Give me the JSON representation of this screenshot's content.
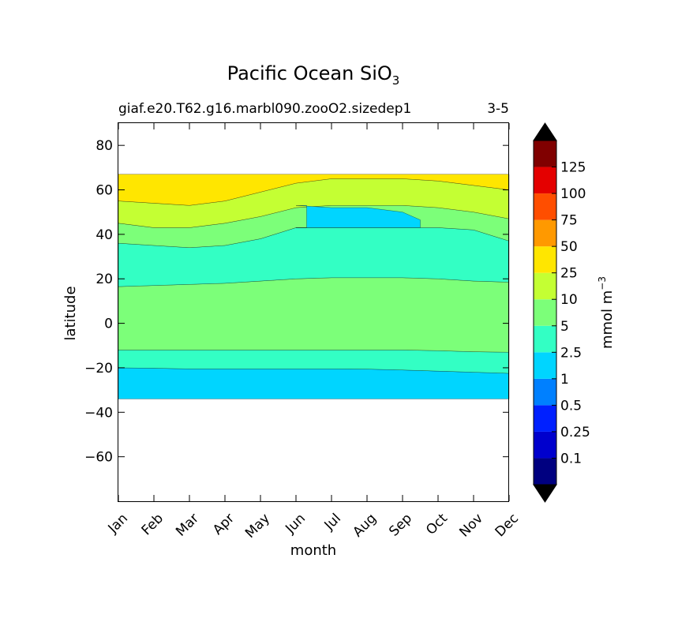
{
  "chart_data": {
    "type": "contourf",
    "title": "Pacific Ocean SiO",
    "title_subscript": "3",
    "subtitle_left": "giaf.e20.T62.g16.marbl090.zooO2.sizedep1",
    "subtitle_right": "3-5",
    "xlabel": "month",
    "ylabel": "latitude",
    "x_ticks": [
      "Jan",
      "Feb",
      "Mar",
      "Apr",
      "May",
      "Jun",
      "Jul",
      "Aug",
      "Sep",
      "Oct",
      "Nov",
      "Dec"
    ],
    "x_range": [
      0,
      11
    ],
    "y_range": [
      -80,
      90
    ],
    "y_ticks": [
      80,
      60,
      40,
      20,
      0,
      -20,
      -40,
      -60
    ],
    "y_tick_labels": [
      "80",
      "60",
      "40",
      "20",
      "0",
      "−20",
      "−40",
      "−60"
    ],
    "data_lat_range": [
      -34,
      67
    ],
    "colorbar": {
      "label": "mmol m",
      "label_superscript": "−3",
      "levels": [
        "0.1",
        "0.25",
        "0.5",
        "1",
        "2.5",
        "5",
        "10",
        "25",
        "50",
        "75",
        "100",
        "125"
      ],
      "colors": [
        "#000080",
        "#0000cd",
        "#0020ff",
        "#0080ff",
        "#00d5ff",
        "#33ffc4",
        "#7cff79",
        "#c4ff33",
        "#ffe600",
        "#ff9900",
        "#ff4e00",
        "#e40000",
        "#800000"
      ],
      "extend_low_color": "#000000",
      "extend_high_color": "#000000"
    },
    "regions": [
      {
        "band": "1-2.5",
        "color": "#00d5ff",
        "lower": [
          -34,
          -34,
          -34,
          -34,
          -34,
          -34,
          -34,
          -34,
          -34,
          -34,
          -34,
          -34
        ],
        "upper": [
          -20,
          -20.2,
          -20.5,
          -20.5,
          -20.5,
          -20.5,
          -20.5,
          -20.6,
          -21,
          -21.5,
          -22,
          -22.5
        ]
      },
      {
        "band": "2.5-5",
        "color": "#33ffc4",
        "lower": [
          -20,
          -20.2,
          -20.5,
          -20.5,
          -20.5,
          -20.5,
          -20.5,
          -20.6,
          -21,
          -21.5,
          -22,
          -22.5
        ],
        "upper": [
          -12,
          -12,
          -12,
          -12,
          -12,
          -12,
          -12,
          -12,
          -12,
          -12.3,
          -12.8,
          -13
        ]
      },
      {
        "band": "5-10",
        "color": "#7cff79",
        "lower": [
          -12,
          -12,
          -12,
          -12,
          -12,
          -12,
          -12,
          -12,
          -12,
          -12.3,
          -12.8,
          -13
        ],
        "upper": [
          16.5,
          17,
          17.5,
          18,
          19,
          20,
          20.5,
          20.5,
          20.5,
          20,
          19,
          18.5
        ]
      },
      {
        "band": "2.5-5",
        "color": "#33ffc4",
        "lower": [
          16.5,
          17,
          17.5,
          18,
          19,
          20,
          20.5,
          20.5,
          20.5,
          20,
          19,
          18.5
        ],
        "upper": [
          36,
          35,
          34,
          35,
          38,
          43,
          43,
          43,
          43,
          43,
          42,
          37
        ]
      },
      {
        "band": "5-10",
        "color": "#7cff79",
        "lower": [
          36,
          35,
          34,
          35,
          38,
          43,
          43,
          43,
          43,
          43,
          42,
          37
        ],
        "upper": [
          45,
          43,
          43,
          45,
          48,
          52,
          53,
          53,
          53,
          52,
          50,
          47
        ]
      },
      {
        "band": "10-25",
        "color": "#c4ff33",
        "lower": [
          45,
          43,
          43,
          45,
          48,
          52,
          53,
          53,
          53,
          52,
          50,
          47
        ],
        "upper": [
          55,
          54,
          53,
          55,
          59,
          63,
          65,
          65,
          65,
          64,
          62,
          60
        ]
      },
      {
        "band": "25-50",
        "color": "#ffe600",
        "lower": [
          55,
          54,
          53,
          55,
          59,
          63,
          65,
          65,
          65,
          64,
          62,
          60
        ],
        "upper": [
          67,
          67,
          67,
          67,
          67,
          67,
          67,
          67,
          67,
          67,
          67,
          67
        ]
      },
      {
        "band": "1-2.5",
        "color": "#00d5ff",
        "lower": [
          null,
          null,
          null,
          null,
          null,
          43,
          43,
          43,
          43,
          null,
          null,
          null
        ],
        "upper": [
          null,
          null,
          null,
          null,
          null,
          53,
          52,
          52,
          50,
          null,
          null,
          null
        ],
        "x_extent": [
          5.3,
          8.5
        ]
      }
    ]
  }
}
